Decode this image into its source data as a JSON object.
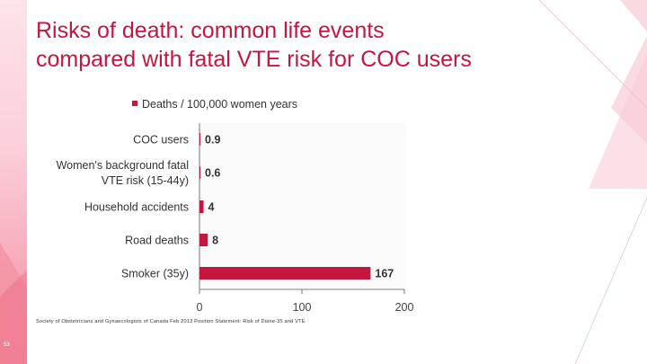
{
  "slide": {
    "title_line1": "Risks of death: common life events",
    "title_line2": "compared with fatal VTE risk for COC users",
    "footnote": "Society of Obstetricians and Gynaecologists of Canada Feb 2013 Position Statement: Risk of Diane-35 and VTE",
    "slide_number": "53"
  },
  "colors": {
    "accent": "#c4163f",
    "bar": "#c4163f"
  },
  "chart_data": {
    "type": "bar",
    "orientation": "horizontal",
    "categories": [
      [
        "COC users"
      ],
      [
        "Women's background fatal",
        "VTE risk (15-44y)"
      ],
      [
        "Household accidents"
      ],
      [
        "Road deaths"
      ],
      [
        "Smoker (35y)"
      ]
    ],
    "series": [
      {
        "name": "Deaths / 100,000 women years",
        "values": [
          0.9,
          0.6,
          4,
          8,
          167
        ]
      }
    ],
    "data_labels": [
      "0.9",
      "0.6",
      "4",
      "8",
      "167"
    ],
    "xlim": [
      0,
      200
    ],
    "x_ticks": [
      0,
      100,
      200
    ],
    "legend_position": "top",
    "grid": false
  }
}
